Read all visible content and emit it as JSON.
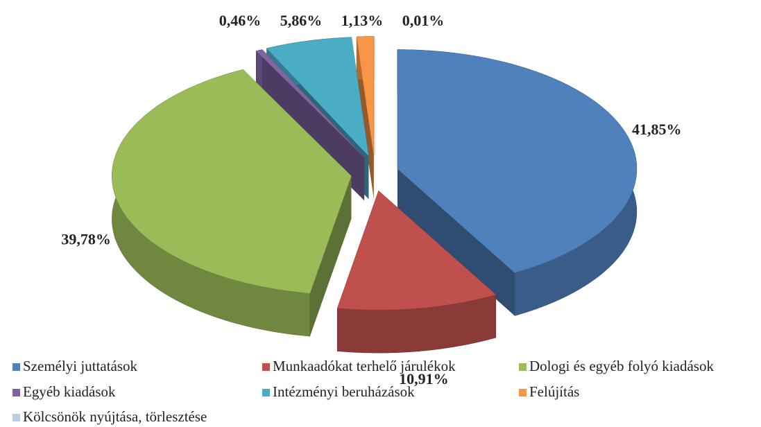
{
  "chart_data": {
    "type": "pie",
    "categories": [
      "Személyi juttatások",
      "Munkaadókat terhelő járulékok",
      "Dologi és egyéb folyó kiadások",
      "Egyéb kiadások",
      "Intézményi beruházások",
      "Felújítás",
      "Kölcsönök nyújtása, törlesztése"
    ],
    "values": [
      41.85,
      10.91,
      39.78,
      0.46,
      5.86,
      1.13,
      0.01
    ],
    "value_labels": [
      "41,85%",
      "10,91%",
      "39,78%",
      "0,46%",
      "5,86%",
      "1,13%",
      "0,01%"
    ],
    "colors": [
      "#4f81bd",
      "#c0504d",
      "#9bbb59",
      "#8064a2",
      "#4bacc6",
      "#f79646",
      "#b9cde5"
    ],
    "legend": "bottom"
  }
}
